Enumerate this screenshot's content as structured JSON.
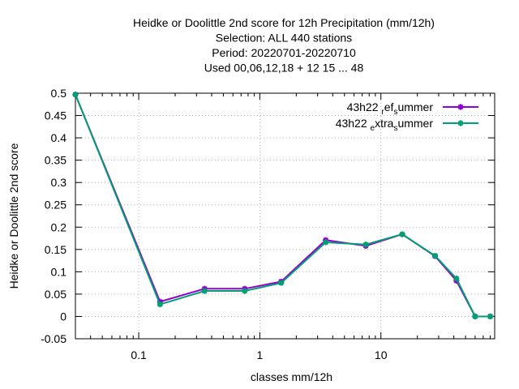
{
  "chart_data": {
    "type": "line",
    "title_lines": [
      "Heidke or Doolittle 2nd score  for 12h Precipitation (mm/12h)",
      "Selection: ALL     440 stations",
      "Period: 20220701-20220710",
      "Used  00,06,12,18  + 12 15 ... 48"
    ],
    "xlabel": "classes mm/12h",
    "ylabel": "Heidke or Doolittle 2nd score",
    "xscale": "log",
    "xlim": [
      0.03,
      87
    ],
    "ylim": [
      -0.05,
      0.5
    ],
    "x_ticks": [
      0.1,
      1,
      10
    ],
    "x_tick_labels": [
      "0.1",
      "1",
      "10"
    ],
    "y_ticks": [
      -0.05,
      0,
      0.05,
      0.1,
      0.15,
      0.2,
      0.25,
      0.3,
      0.35,
      0.4,
      0.45,
      0.5
    ],
    "y_tick_labels": [
      "-0.05",
      "0",
      "0.05",
      "0.1",
      "0.15",
      "0.2",
      "0.25",
      "0.3",
      "0.35",
      "0.4",
      "0.45",
      "0.5"
    ],
    "grid": true,
    "legend_position": "top-right",
    "x": [
      0.03,
      0.15,
      0.35,
      0.75,
      1.5,
      3.5,
      7.5,
      15,
      28,
      42,
      60,
      80
    ],
    "series": [
      {
        "name": "43h22 ref summer",
        "label_main": "43h22",
        "label_pieces": [
          [
            "r",
            true
          ],
          [
            "ef",
            false
          ],
          [
            "s",
            true
          ],
          [
            "ummer",
            false
          ]
        ],
        "color": "#9400d3",
        "values": [
          0.497,
          0.033,
          0.062,
          0.062,
          0.078,
          0.171,
          0.158,
          0.184,
          0.135,
          0.08,
          0.0,
          0.0
        ]
      },
      {
        "name": "43h22 extra summer",
        "label_main": "43h22",
        "label_pieces": [
          [
            "e",
            true
          ],
          [
            "xtra",
            false
          ],
          [
            "s",
            true
          ],
          [
            "ummer",
            false
          ]
        ],
        "color": "#009e73",
        "values": [
          0.497,
          0.027,
          0.057,
          0.057,
          0.075,
          0.166,
          0.161,
          0.184,
          0.136,
          0.085,
          0.0,
          0.0
        ]
      }
    ]
  }
}
